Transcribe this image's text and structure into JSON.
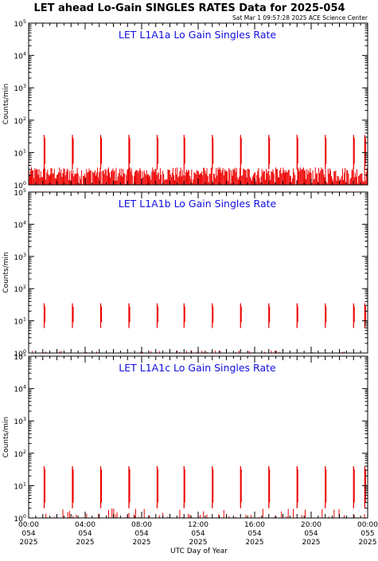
{
  "header": {
    "title": "LET ahead Lo-Gain SINGLES RATES Data for 2025-054",
    "timestamp": "Sat Mar  1 09:57:28 2025 ACE Science Center"
  },
  "axes": {
    "ylabel": "Counts/min",
    "xlabel": "UTC Day of Year",
    "y_tick_exponents": [
      "0",
      "1",
      "2",
      "3",
      "4",
      "5"
    ],
    "y_tick_base": "10",
    "x_ticks": [
      {
        "time": "00:00",
        "doy": "054",
        "year": "2025"
      },
      {
        "time": "04:00",
        "doy": "054",
        "year": "2025"
      },
      {
        "time": "08:00",
        "doy": "054",
        "year": "2025"
      },
      {
        "time": "12:00",
        "doy": "054",
        "year": "2025"
      },
      {
        "time": "16:00",
        "doy": "054",
        "year": "2025"
      },
      {
        "time": "20:00",
        "doy": "054",
        "year": "2025"
      },
      {
        "time": "00:00",
        "doy": "055",
        "year": "2025"
      }
    ]
  },
  "colors": {
    "data": "#ee0000",
    "panel_title": "#1010e0",
    "axis": "#000000"
  },
  "chart_data": [
    {
      "type": "line",
      "title": "LET L1A1a Lo Gain Singles Rate",
      "x_unit": "hours UTC on 2025-054",
      "xlim": [
        0,
        24
      ],
      "ylim": [
        1,
        100000
      ],
      "log_y": true,
      "ylabel": "Counts/min",
      "xlabel": "UTC Day of Year",
      "spike_times": [
        1.1,
        3.1,
        5.1,
        7.1,
        9.1,
        11.0,
        13.0,
        15.0,
        17.0,
        19.0,
        21.0,
        23.0,
        23.8
      ],
      "spike_peak": 35,
      "spike_floor": 3,
      "baseline_range": [
        1,
        3.5
      ]
    },
    {
      "type": "line",
      "title": "LET L1A1b Lo Gain Singles Rate",
      "x_unit": "hours UTC on 2025-054",
      "xlim": [
        0,
        24
      ],
      "ylim": [
        1,
        100000
      ],
      "log_y": true,
      "ylabel": "Counts/min",
      "xlabel": "UTC Day of Year",
      "spike_times": [
        1.1,
        3.1,
        5.1,
        7.1,
        9.1,
        11.0,
        13.0,
        15.0,
        17.0,
        19.0,
        21.0,
        23.0,
        23.8
      ],
      "spike_peak": 35,
      "spike_floor": 6,
      "baseline_range": [
        1,
        1.2
      ]
    },
    {
      "type": "line",
      "title": "LET L1A1c Lo Gain Singles Rate",
      "x_unit": "hours UTC on 2025-054",
      "xlim": [
        0,
        24
      ],
      "ylim": [
        1,
        100000
      ],
      "log_y": true,
      "ylabel": "Counts/min",
      "xlabel": "UTC Day of Year",
      "spike_times": [
        1.1,
        3.1,
        5.1,
        7.1,
        9.1,
        11.0,
        13.0,
        15.0,
        17.0,
        19.0,
        21.0,
        23.0,
        23.8
      ],
      "spike_peak": 40,
      "spike_floor": 2,
      "baseline_range": [
        1,
        2
      ]
    }
  ]
}
